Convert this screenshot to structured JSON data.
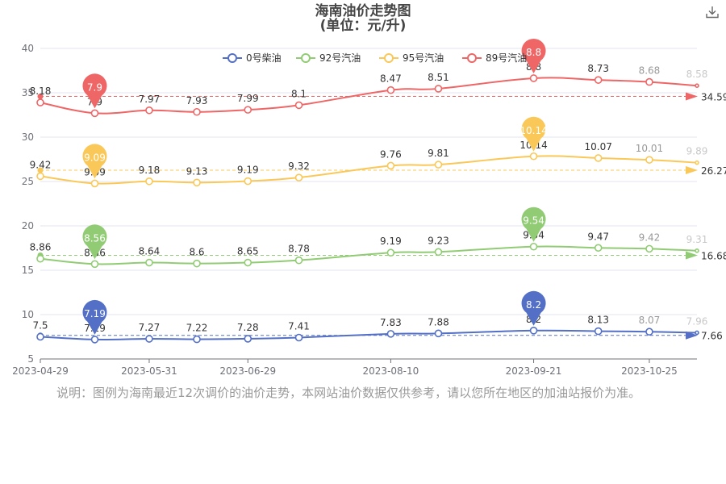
{
  "title_line1": "海南油价走势图",
  "title_line2": "(单位：元/升)",
  "note": "说明：图例为海南最近12次调价的油价走势，本网站油价数据仅供参考，请以您所在地区的加油站报价为准。",
  "colors": {
    "diesel0": "#5470c6",
    "gas92": "#91cc75",
    "gas95": "#fac858",
    "gas89": "#ee6666"
  },
  "chart_data": {
    "type": "line",
    "title": "海南油价走势图",
    "subtitle": "(单位：元/升)",
    "x_dates": [
      "2023-04-29",
      "2023-05-15",
      "2023-05-31",
      "2023-06-14",
      "2023-06-29",
      "2023-07-14",
      "2023-08-10",
      "2023-08-24",
      "2023-09-21",
      "2023-10-10",
      "2023-10-25",
      "2023-11-08"
    ],
    "x_tick_labels": [
      "2023-04-29",
      "2023-05-31",
      "2023-06-29",
      "2023-08-10",
      "2023-09-21",
      "2023-10-25"
    ],
    "ylim": [
      5,
      40
    ],
    "yticks": [
      5,
      10,
      15,
      20,
      25,
      30,
      35,
      40
    ],
    "legend_position": "top-right",
    "series": [
      {
        "name": "0号柴油",
        "color_key": "diesel0",
        "prices": [
          7.5,
          7.19,
          7.27,
          7.22,
          7.28,
          7.41,
          7.83,
          7.88,
          8.2,
          8.13,
          8.07,
          7.96
        ],
        "plot_values": [
          7.5,
          7.19,
          7.27,
          7.22,
          7.28,
          7.41,
          7.83,
          7.88,
          8.2,
          8.13,
          8.07,
          7.96
        ],
        "min_pin": "7.19",
        "max_pin": "8.2",
        "average": 7.66,
        "average_label": "7.66"
      },
      {
        "name": "92号汽油",
        "color_key": "gas92",
        "prices": [
          8.86,
          8.56,
          8.64,
          8.6,
          8.65,
          8.78,
          9.19,
          9.23,
          9.54,
          9.47,
          9.42,
          9.31
        ],
        "plot_values": [
          16.3,
          15.7,
          15.86,
          15.76,
          15.86,
          16.12,
          16.98,
          17.06,
          17.66,
          17.52,
          17.42,
          17.2
        ],
        "min_pin": "8.56",
        "max_pin": "9.54",
        "average": 16.68,
        "average_label": "16.68"
      },
      {
        "name": "95号汽油",
        "color_key": "gas95",
        "prices": [
          9.42,
          9.09,
          9.18,
          9.13,
          9.19,
          9.32,
          9.76,
          9.81,
          10.14,
          10.07,
          10.01,
          9.89
        ],
        "plot_values": [
          25.6,
          24.78,
          25.02,
          24.88,
          25.04,
          25.44,
          26.78,
          26.9,
          27.84,
          27.64,
          27.44,
          27.12
        ],
        "min_pin": "9.09",
        "max_pin": "10.14",
        "average": 26.27,
        "average_label": "26.27"
      },
      {
        "name": "89号汽油",
        "color_key": "gas89",
        "prices": [
          8.18,
          7.9,
          7.97,
          7.93,
          7.99,
          8.1,
          8.47,
          8.51,
          8.8,
          8.73,
          8.68,
          8.58
        ],
        "plot_values": [
          33.9,
          32.7,
          33.02,
          32.84,
          33.08,
          33.6,
          35.3,
          35.46,
          36.64,
          36.44,
          36.22,
          35.8
        ],
        "min_pin": "7.9",
        "max_pin": "8.8",
        "average": 34.59,
        "average_label": "34.59"
      }
    ]
  }
}
